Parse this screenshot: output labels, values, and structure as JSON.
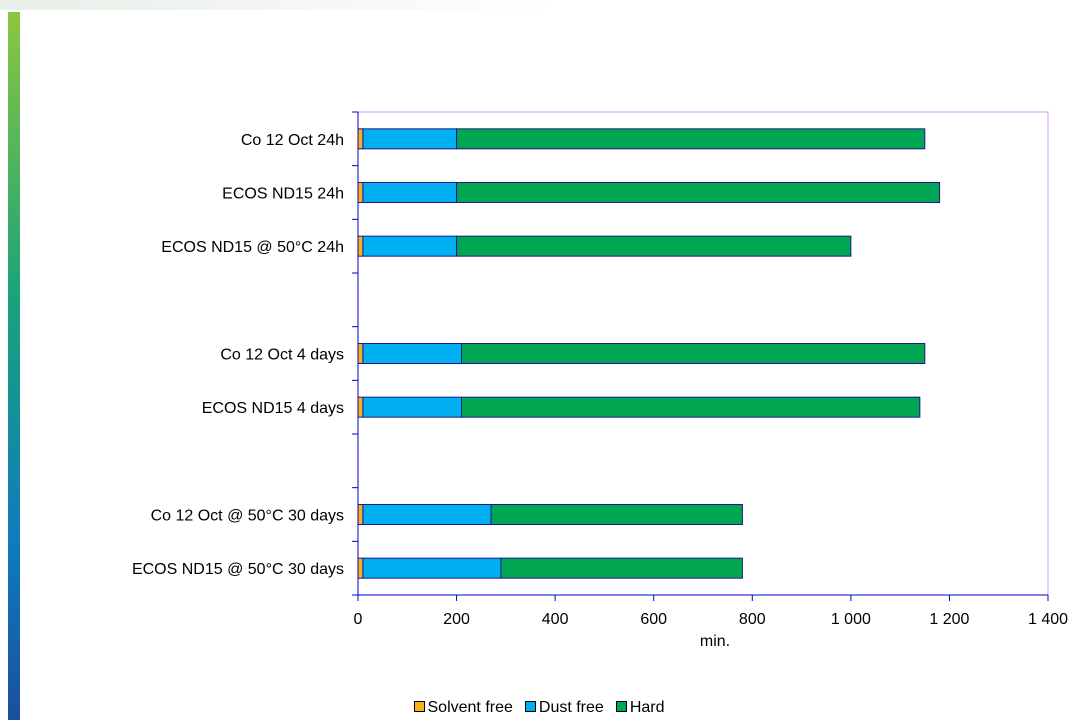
{
  "chart_data": {
    "type": "bar",
    "orientation": "horizontal",
    "stacked": true,
    "categories": [
      "Co 12 Oct 24h",
      "ECOS ND15 24h",
      "ECOS ND15 @ 50°C 24h",
      "",
      "Co 12 Oct 4 days",
      "ECOS ND15 4 days",
      "",
      "Co 12 Oct @ 50°C 30 days",
      "ECOS ND15 @ 50°C 30 days"
    ],
    "series": [
      {
        "name": "Solvent free",
        "color": "#f7b21b",
        "values": [
          10,
          10,
          10,
          null,
          10,
          10,
          null,
          10,
          10
        ]
      },
      {
        "name": "Dust free",
        "color": "#00b0f0",
        "values": [
          190,
          190,
          190,
          null,
          200,
          200,
          null,
          260,
          280
        ]
      },
      {
        "name": "Hard",
        "color": "#00a651",
        "values": [
          950,
          980,
          800,
          null,
          940,
          930,
          null,
          510,
          490
        ]
      }
    ],
    "xlabel": "min.",
    "ylabel": "",
    "xlim": [
      0,
      1400
    ],
    "x_ticks": [
      "0",
      "200",
      "400",
      "600",
      "800",
      "1 000",
      "1 200",
      "1 400"
    ],
    "grid": false,
    "legend_position": "bottom"
  }
}
